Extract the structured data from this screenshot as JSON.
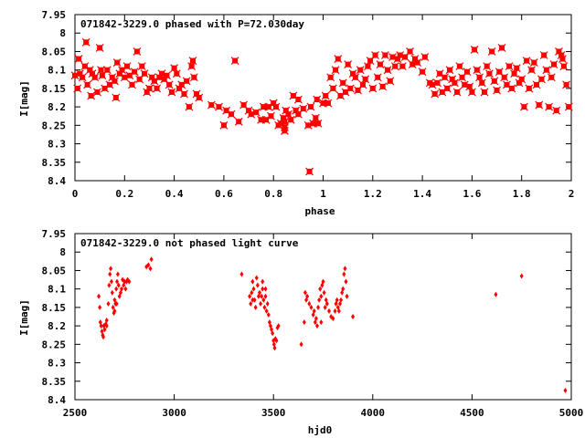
{
  "colors": {
    "points": "#ff0000",
    "axes": "#000000",
    "background": "#ffffff"
  },
  "chart_data": [
    {
      "type": "scatter",
      "title": "071842-3229.0 phased with P=72.030day",
      "xlabel": "phase",
      "ylabel": "I[mag]",
      "xlim": [
        0,
        2
      ],
      "ylim": [
        7.95,
        8.4
      ],
      "y_inverted": true,
      "grid": false,
      "marker": "star",
      "xticks": [
        "0",
        "0.2",
        "0.4",
        "0.6",
        "0.8",
        "1",
        "1.2",
        "1.4",
        "1.6",
        "1.8",
        "2"
      ],
      "yticks": [
        "7.95",
        "8",
        "8.05",
        "8.1",
        "8.15",
        "8.2",
        "8.25",
        "8.3",
        "8.35",
        "8.4"
      ],
      "points": [
        [
          0.0,
          8.115
        ],
        [
          0.01,
          8.15
        ],
        [
          0.015,
          8.07
        ],
        [
          0.02,
          8.11
        ],
        [
          0.03,
          8.12
        ],
        [
          0.04,
          8.09
        ],
        [
          0.045,
          8.025
        ],
        [
          0.05,
          8.14
        ],
        [
          0.06,
          8.1
        ],
        [
          0.065,
          8.17
        ],
        [
          0.07,
          8.11
        ],
        [
          0.08,
          8.12
        ],
        [
          0.09,
          8.16
        ],
        [
          0.1,
          8.04
        ],
        [
          0.105,
          8.1
        ],
        [
          0.11,
          8.115
        ],
        [
          0.12,
          8.15
        ],
        [
          0.13,
          8.1
        ],
        [
          0.14,
          8.14
        ],
        [
          0.15,
          8.12
        ],
        [
          0.16,
          8.13
        ],
        [
          0.165,
          8.175
        ],
        [
          0.17,
          8.08
        ],
        [
          0.18,
          8.11
        ],
        [
          0.19,
          8.1
        ],
        [
          0.2,
          8.12
        ],
        [
          0.21,
          8.09
        ],
        [
          0.22,
          8.115
        ],
        [
          0.23,
          8.14
        ],
        [
          0.24,
          8.105
        ],
        [
          0.25,
          8.05
        ],
        [
          0.26,
          8.125
        ],
        [
          0.27,
          8.09
        ],
        [
          0.28,
          8.11
        ],
        [
          0.29,
          8.16
        ],
        [
          0.3,
          8.15
        ],
        [
          0.31,
          8.12
        ],
        [
          0.32,
          8.13
        ],
        [
          0.33,
          8.15
        ],
        [
          0.34,
          8.12
        ],
        [
          0.35,
          8.11
        ],
        [
          0.36,
          8.125
        ],
        [
          0.37,
          8.115
        ],
        [
          0.38,
          8.14
        ],
        [
          0.39,
          8.16
        ],
        [
          0.4,
          8.095
        ],
        [
          0.41,
          8.11
        ],
        [
          0.42,
          8.15
        ],
        [
          0.43,
          8.14
        ],
        [
          0.44,
          8.165
        ],
        [
          0.45,
          8.13
        ],
        [
          0.46,
          8.2
        ],
        [
          0.47,
          8.09
        ],
        [
          0.475,
          8.075
        ],
        [
          0.48,
          8.12
        ],
        [
          0.49,
          8.165
        ],
        [
          0.5,
          8.175
        ],
        [
          0.55,
          8.195
        ],
        [
          0.58,
          8.2
        ],
        [
          0.6,
          8.25
        ],
        [
          0.61,
          8.21
        ],
        [
          0.63,
          8.22
        ],
        [
          0.645,
          8.075
        ],
        [
          0.66,
          8.24
        ],
        [
          0.68,
          8.195
        ],
        [
          0.7,
          8.21
        ],
        [
          0.71,
          8.22
        ],
        [
          0.73,
          8.215
        ],
        [
          0.75,
          8.235
        ],
        [
          0.76,
          8.2
        ],
        [
          0.77,
          8.235
        ],
        [
          0.78,
          8.2
        ],
        [
          0.79,
          8.225
        ],
        [
          0.8,
          8.19
        ],
        [
          0.81,
          8.2
        ],
        [
          0.82,
          8.25
        ],
        [
          0.83,
          8.245
        ],
        [
          0.84,
          8.23
        ],
        [
          0.845,
          8.24
        ],
        [
          0.845,
          8.255
        ],
        [
          0.845,
          8.265
        ],
        [
          0.85,
          8.21
        ],
        [
          0.86,
          8.22
        ],
        [
          0.87,
          8.235
        ],
        [
          0.89,
          8.21
        ],
        [
          0.9,
          8.22
        ],
        [
          0.92,
          8.205
        ],
        [
          0.94,
          8.25
        ],
        [
          0.945,
          8.375
        ],
        [
          0.95,
          8.2
        ],
        [
          0.96,
          8.245
        ],
        [
          0.97,
          8.23
        ],
        [
          0.975,
          8.18
        ],
        [
          0.98,
          8.245
        ],
        [
          1.0,
          8.19
        ],
        [
          1.01,
          8.17
        ],
        [
          1.02,
          8.19
        ],
        [
          1.03,
          8.12
        ],
        [
          1.04,
          8.15
        ],
        [
          1.05,
          8.1
        ],
        [
          1.06,
          8.07
        ],
        [
          1.07,
          8.17
        ],
        [
          1.08,
          8.135
        ],
        [
          1.09,
          8.16
        ],
        [
          1.1,
          8.085
        ],
        [
          1.11,
          8.15
        ],
        [
          1.12,
          8.11
        ],
        [
          1.13,
          8.12
        ],
        [
          1.14,
          8.155
        ],
        [
          1.15,
          8.1
        ],
        [
          1.16,
          8.14
        ],
        [
          1.17,
          8.125
        ],
        [
          1.18,
          8.09
        ],
        [
          1.19,
          8.075
        ],
        [
          1.2,
          8.15
        ],
        [
          1.21,
          8.06
        ],
        [
          1.22,
          8.12
        ],
        [
          1.23,
          8.085
        ],
        [
          1.24,
          8.145
        ],
        [
          1.25,
          8.06
        ],
        [
          1.26,
          8.1
        ],
        [
          1.27,
          8.13
        ],
        [
          1.28,
          8.065
        ],
        [
          1.29,
          8.09
        ],
        [
          1.3,
          8.07
        ],
        [
          1.31,
          8.06
        ],
        [
          1.32,
          8.09
        ],
        [
          1.33,
          8.065
        ],
        [
          1.35,
          8.05
        ],
        [
          1.36,
          8.085
        ],
        [
          1.37,
          8.07
        ],
        [
          1.38,
          8.08
        ],
        [
          1.4,
          8.105
        ],
        [
          1.41,
          8.065
        ],
        [
          1.43,
          8.135
        ],
        [
          1.44,
          8.14
        ],
        [
          1.45,
          8.165
        ],
        [
          1.46,
          8.135
        ],
        [
          1.47,
          8.11
        ],
        [
          1.48,
          8.16
        ],
        [
          1.49,
          8.12
        ],
        [
          1.5,
          8.15
        ],
        [
          1.51,
          8.1
        ],
        [
          1.52,
          8.125
        ],
        [
          1.53,
          8.135
        ],
        [
          1.54,
          8.16
        ],
        [
          1.55,
          8.09
        ],
        [
          1.56,
          8.12
        ],
        [
          1.57,
          8.14
        ],
        [
          1.58,
          8.105
        ],
        [
          1.59,
          8.145
        ],
        [
          1.6,
          8.16
        ],
        [
          1.61,
          8.045
        ],
        [
          1.62,
          8.1
        ],
        [
          1.63,
          8.12
        ],
        [
          1.64,
          8.135
        ],
        [
          1.65,
          8.16
        ],
        [
          1.66,
          8.09
        ],
        [
          1.67,
          8.11
        ],
        [
          1.68,
          8.05
        ],
        [
          1.69,
          8.13
        ],
        [
          1.7,
          8.155
        ],
        [
          1.71,
          8.105
        ],
        [
          1.72,
          8.04
        ],
        [
          1.73,
          8.12
        ],
        [
          1.74,
          8.14
        ],
        [
          1.75,
          8.09
        ],
        [
          1.76,
          8.15
        ],
        [
          1.77,
          8.11
        ],
        [
          1.78,
          8.095
        ],
        [
          1.79,
          8.135
        ],
        [
          1.8,
          8.125
        ],
        [
          1.81,
          8.2
        ],
        [
          1.82,
          8.075
        ],
        [
          1.83,
          8.15
        ],
        [
          1.84,
          8.1
        ],
        [
          1.85,
          8.08
        ],
        [
          1.86,
          8.14
        ],
        [
          1.87,
          8.195
        ],
        [
          1.88,
          8.125
        ],
        [
          1.89,
          8.06
        ],
        [
          1.9,
          8.1
        ],
        [
          1.91,
          8.2
        ],
        [
          1.92,
          8.12
        ],
        [
          1.93,
          8.085
        ],
        [
          1.94,
          8.21
        ],
        [
          1.95,
          8.05
        ],
        [
          1.96,
          8.06
        ],
        [
          1.965,
          8.07
        ],
        [
          1.97,
          8.09
        ],
        [
          1.98,
          8.14
        ],
        [
          1.99,
          8.2
        ],
        [
          0.88,
          8.17
        ],
        [
          0.9,
          8.18
        ]
      ]
    },
    {
      "type": "scatter",
      "title": "071842-3229.0 not phased light curve",
      "xlabel": "hjd0",
      "ylabel": "I[mag]",
      "xlim": [
        2500,
        5000
      ],
      "ylim": [
        7.95,
        8.4
      ],
      "y_inverted": true,
      "grid": false,
      "marker": "diamond",
      "xticks": [
        "2500",
        "3000",
        "3500",
        "4000",
        "4500",
        "5000"
      ],
      "yticks": [
        "7.95",
        "8",
        "8.05",
        "8.1",
        "8.15",
        "8.2",
        "8.25",
        "8.3",
        "8.35",
        "8.4"
      ],
      "points": [
        [
          2620,
          8.12
        ],
        [
          2625,
          8.15
        ],
        [
          2628,
          8.19
        ],
        [
          2632,
          8.2
        ],
        [
          2636,
          8.215
        ],
        [
          2640,
          8.225
        ],
        [
          2643,
          8.23
        ],
        [
          2645,
          8.2
        ],
        [
          2650,
          8.21
        ],
        [
          2655,
          8.195
        ],
        [
          2660,
          8.185
        ],
        [
          2668,
          8.14
        ],
        [
          2672,
          8.09
        ],
        [
          2676,
          8.06
        ],
        [
          2680,
          8.045
        ],
        [
          2684,
          8.08
        ],
        [
          2688,
          8.11
        ],
        [
          2692,
          8.15
        ],
        [
          2696,
          8.165
        ],
        [
          2700,
          8.13
        ],
        [
          2704,
          8.14
        ],
        [
          2708,
          8.1
        ],
        [
          2712,
          8.08
        ],
        [
          2716,
          8.06
        ],
        [
          2720,
          8.09
        ],
        [
          2724,
          8.12
        ],
        [
          2730,
          8.11
        ],
        [
          2735,
          8.1
        ],
        [
          2740,
          8.075
        ],
        [
          2745,
          8.09
        ],
        [
          2750,
          8.08
        ],
        [
          2755,
          8.1
        ],
        [
          2760,
          8.08
        ],
        [
          2765,
          8.075
        ],
        [
          2773,
          8.08
        ],
        [
          2860,
          8.04
        ],
        [
          2870,
          8.035
        ],
        [
          2880,
          8.045
        ],
        [
          2885,
          8.02
        ],
        [
          2660,
          8.2
        ],
        [
          2700,
          8.16
        ],
        [
          2710,
          8.14
        ],
        [
          3340,
          8.06
        ],
        [
          3380,
          8.12
        ],
        [
          3385,
          8.14
        ],
        [
          3390,
          8.11
        ],
        [
          3395,
          8.08
        ],
        [
          3400,
          8.1
        ],
        [
          3405,
          8.13
        ],
        [
          3410,
          8.15
        ],
        [
          3415,
          8.07
        ],
        [
          3420,
          8.09
        ],
        [
          3425,
          8.12
        ],
        [
          3430,
          8.11
        ],
        [
          3435,
          8.14
        ],
        [
          3440,
          8.12
        ],
        [
          3445,
          8.1
        ],
        [
          3450,
          8.13
        ],
        [
          3455,
          8.15
        ],
        [
          3460,
          8.12
        ],
        [
          3465,
          8.16
        ],
        [
          3470,
          8.14
        ],
        [
          3475,
          8.17
        ],
        [
          3480,
          8.19
        ],
        [
          3485,
          8.2
        ],
        [
          3490,
          8.21
        ],
        [
          3495,
          8.22
        ],
        [
          3500,
          8.24
        ],
        [
          3503,
          8.25
        ],
        [
          3506,
          8.26
        ],
        [
          3510,
          8.235
        ],
        [
          3515,
          8.24
        ],
        [
          3520,
          8.205
        ],
        [
          3525,
          8.2
        ],
        [
          3395,
          8.13
        ],
        [
          3445,
          8.08
        ],
        [
          3460,
          8.1
        ],
        [
          3640,
          8.25
        ],
        [
          3655,
          8.19
        ],
        [
          3660,
          8.11
        ],
        [
          3665,
          8.13
        ],
        [
          3670,
          8.12
        ],
        [
          3680,
          8.14
        ],
        [
          3690,
          8.15
        ],
        [
          3700,
          8.17
        ],
        [
          3705,
          8.16
        ],
        [
          3710,
          8.19
        ],
        [
          3715,
          8.18
        ],
        [
          3720,
          8.2
        ],
        [
          3725,
          8.15
        ],
        [
          3730,
          8.13
        ],
        [
          3735,
          8.1
        ],
        [
          3740,
          8.12
        ],
        [
          3745,
          8.09
        ],
        [
          3750,
          8.08
        ],
        [
          3755,
          8.11
        ],
        [
          3760,
          8.15
        ],
        [
          3765,
          8.13
        ],
        [
          3770,
          8.14
        ],
        [
          3780,
          8.16
        ],
        [
          3790,
          8.175
        ],
        [
          3800,
          8.18
        ],
        [
          3810,
          8.16
        ],
        [
          3815,
          8.14
        ],
        [
          3820,
          8.13
        ],
        [
          3825,
          8.15
        ],
        [
          3830,
          8.16
        ],
        [
          3835,
          8.14
        ],
        [
          3840,
          8.13
        ],
        [
          3845,
          8.11
        ],
        [
          3850,
          8.1
        ],
        [
          3855,
          8.06
        ],
        [
          3860,
          8.045
        ],
        [
          3865,
          8.08
        ],
        [
          3870,
          8.12
        ],
        [
          3900,
          8.175
        ],
        [
          3740,
          8.19
        ],
        [
          4620,
          8.115
        ],
        [
          4750,
          8.065
        ],
        [
          4970,
          8.375
        ]
      ]
    }
  ]
}
